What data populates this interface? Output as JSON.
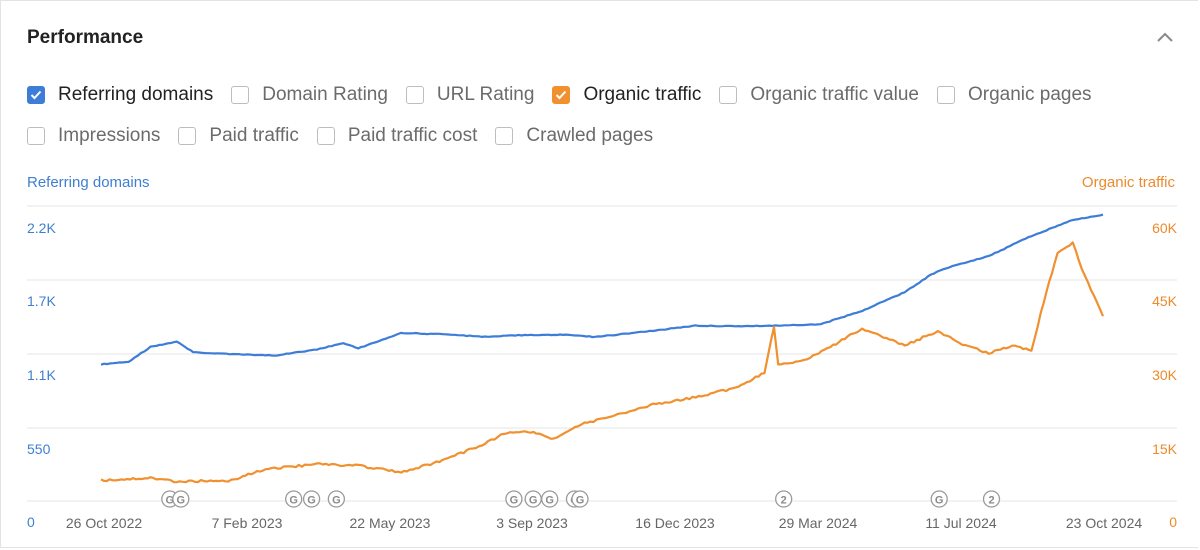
{
  "panel": {
    "title": "Performance"
  },
  "toggles": [
    {
      "label": "Referring domains",
      "checked": true,
      "color": "#3d7dd8"
    },
    {
      "label": "Domain Rating",
      "checked": false
    },
    {
      "label": "URL Rating",
      "checked": false
    },
    {
      "label": "Organic traffic",
      "checked": true,
      "color": "#f0902e"
    },
    {
      "label": "Organic traffic value",
      "checked": false
    },
    {
      "label": "Organic pages",
      "checked": false
    },
    {
      "label": "Impressions",
      "checked": false
    },
    {
      "label": "Paid traffic",
      "checked": false
    },
    {
      "label": "Paid traffic cost",
      "checked": false
    },
    {
      "label": "Crawled pages",
      "checked": false
    }
  ],
  "chart_data": {
    "type": "line",
    "left_axis": {
      "title": "Referring domains",
      "ticks": [
        {
          "label": "2.2K",
          "value": 2200
        },
        {
          "label": "1.7K",
          "value": 1650
        },
        {
          "label": "1.1K",
          "value": 1100
        },
        {
          "label": "550",
          "value": 550
        },
        {
          "label": "0",
          "value": 0
        }
      ],
      "range": [
        0,
        2200
      ]
    },
    "right_axis": {
      "title": "Organic traffic",
      "ticks": [
        {
          "label": "60K",
          "value": 60000
        },
        {
          "label": "45K",
          "value": 45000
        },
        {
          "label": "30K",
          "value": 30000
        },
        {
          "label": "15K",
          "value": 15000
        },
        {
          "label": "0",
          "value": 0
        }
      ],
      "range": [
        0,
        60000
      ]
    },
    "x_ticks": [
      "26 Oct 2022",
      "7 Feb 2023",
      "22 May 2023",
      "3 Sep 2023",
      "16 Dec 2023",
      "29 Mar 2024",
      "11 Jul 2024",
      "23 Oct 2024"
    ],
    "x_range": [
      "2022-10-26",
      "2024-10-23"
    ],
    "grid": true,
    "series": [
      {
        "name": "Referring domains",
        "axis": "left",
        "color": "#3d7dd8",
        "points": [
          [
            "2022-10-26",
            1180
          ],
          [
            "2022-11-15",
            1200
          ],
          [
            "2022-12-01",
            1310
          ],
          [
            "2022-12-20",
            1350
          ],
          [
            "2023-01-01",
            1270
          ],
          [
            "2023-02-01",
            1255
          ],
          [
            "2023-03-01",
            1245
          ],
          [
            "2023-04-01",
            1290
          ],
          [
            "2023-04-20",
            1340
          ],
          [
            "2023-05-01",
            1300
          ],
          [
            "2023-06-01",
            1415
          ],
          [
            "2023-07-01",
            1405
          ],
          [
            "2023-08-01",
            1385
          ],
          [
            "2023-09-01",
            1400
          ],
          [
            "2023-10-01",
            1400
          ],
          [
            "2023-10-20",
            1385
          ],
          [
            "2023-12-01",
            1430
          ],
          [
            "2024-01-01",
            1470
          ],
          [
            "2024-02-01",
            1465
          ],
          [
            "2024-03-01",
            1470
          ],
          [
            "2024-04-01",
            1480
          ],
          [
            "2024-05-01",
            1580
          ],
          [
            "2024-06-01",
            1720
          ],
          [
            "2024-06-20",
            1850
          ],
          [
            "2024-07-01",
            1900
          ],
          [
            "2024-08-01",
            1990
          ],
          [
            "2024-09-01",
            2140
          ],
          [
            "2024-10-01",
            2260
          ],
          [
            "2024-10-23",
            2300
          ]
        ]
      },
      {
        "name": "Organic traffic",
        "axis": "right",
        "color": "#f0902e",
        "points": [
          [
            "2022-10-26",
            8500
          ],
          [
            "2022-12-01",
            9000
          ],
          [
            "2022-12-20",
            8200
          ],
          [
            "2023-01-31",
            8500
          ],
          [
            "2023-02-10",
            9800
          ],
          [
            "2023-03-01",
            11000
          ],
          [
            "2023-04-01",
            11800
          ],
          [
            "2023-05-01",
            11500
          ],
          [
            "2023-06-01",
            10200
          ],
          [
            "2023-07-01",
            12500
          ],
          [
            "2023-08-01",
            16000
          ],
          [
            "2023-08-15",
            18000
          ],
          [
            "2023-09-01",
            18500
          ],
          [
            "2023-09-20",
            17000
          ],
          [
            "2023-10-10",
            20000
          ],
          [
            "2023-11-01",
            21500
          ],
          [
            "2023-12-01",
            24000
          ],
          [
            "2024-01-01",
            25500
          ],
          [
            "2024-02-01",
            27500
          ],
          [
            "2024-02-20",
            30500
          ],
          [
            "2024-02-27",
            40000
          ],
          [
            "2024-03-01",
            32000
          ],
          [
            "2024-03-20",
            33000
          ],
          [
            "2024-04-10",
            36000
          ],
          [
            "2024-05-01",
            39500
          ],
          [
            "2024-06-01",
            36000
          ],
          [
            "2024-06-25",
            39000
          ],
          [
            "2024-07-15",
            36000
          ],
          [
            "2024-08-01",
            34500
          ],
          [
            "2024-08-20",
            36000
          ],
          [
            "2024-09-01",
            35000
          ],
          [
            "2024-09-10",
            45000
          ],
          [
            "2024-09-20",
            55000
          ],
          [
            "2024-10-01",
            57000
          ],
          [
            "2024-10-10",
            50000
          ],
          [
            "2024-10-23",
            42000
          ]
        ]
      }
    ],
    "annotations": [
      {
        "label": "G",
        "date": "2022-12-15"
      },
      {
        "label": "G",
        "date": "2022-12-23"
      },
      {
        "label": "G",
        "date": "2023-03-15"
      },
      {
        "label": "G",
        "date": "2023-03-28"
      },
      {
        "label": "G",
        "date": "2023-04-15"
      },
      {
        "label": "G",
        "date": "2023-08-22"
      },
      {
        "label": "G",
        "date": "2023-09-05"
      },
      {
        "label": "G",
        "date": "2023-09-17"
      },
      {
        "label": "G",
        "date": "2023-10-05"
      },
      {
        "label": "G",
        "date": "2023-10-09"
      },
      {
        "label": "2",
        "date": "2024-03-05"
      },
      {
        "label": "G",
        "date": "2024-06-26"
      },
      {
        "label": "2",
        "date": "2024-08-03"
      }
    ]
  }
}
